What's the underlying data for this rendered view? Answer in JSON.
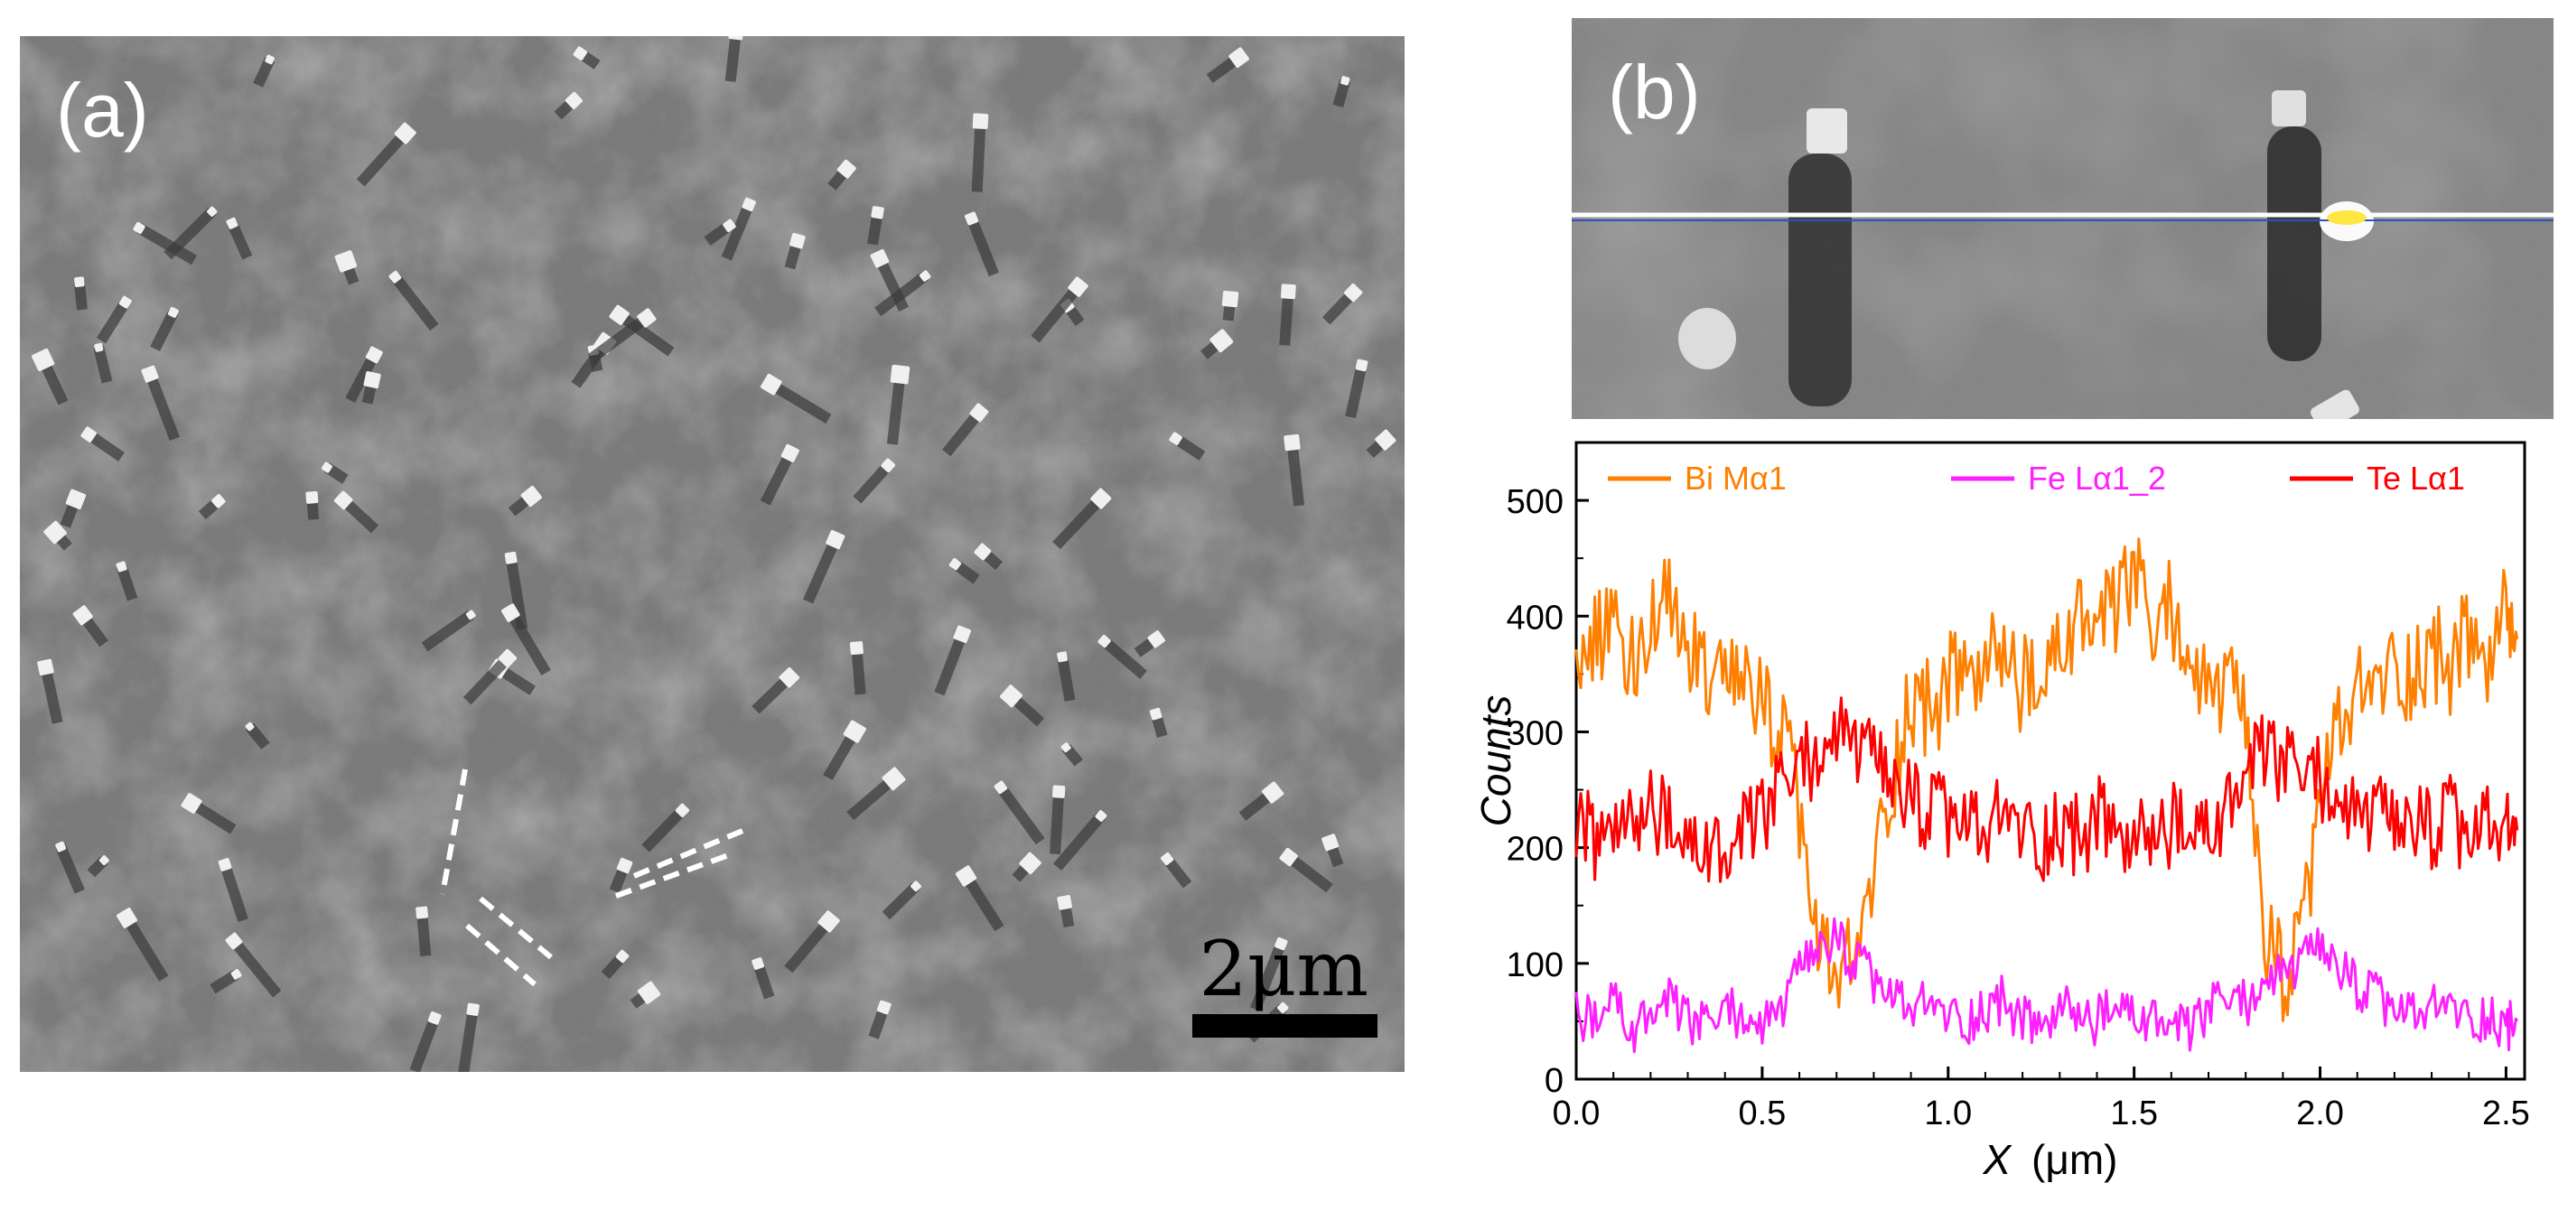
{
  "panels": {
    "a": {
      "label": "(a)",
      "scale_bar_text": "2μm"
    },
    "b": {
      "label": "(b)"
    }
  },
  "colors": {
    "bi": "#ff8000",
    "fe": "#ff20ff",
    "te": "#ff0000",
    "axis": "#000000",
    "sem_bg": "#6d6d6d"
  },
  "chart_data": {
    "type": "line",
    "title": "",
    "xlabel": "X (μm)",
    "xlabel_var": "X",
    "xlabel_unit": "(μm)",
    "ylabel": "Counts",
    "xlim": [
      0.0,
      2.55
    ],
    "ylim": [
      0,
      550
    ],
    "xticks": [
      "0.0",
      "0.5",
      "1.0",
      "1.5",
      "2.0",
      "2.5"
    ],
    "xtick_values": [
      0.0,
      0.5,
      1.0,
      1.5,
      2.0,
      2.5
    ],
    "yticks": [
      "0",
      "100",
      "200",
      "300",
      "400",
      "500"
    ],
    "ytick_values": [
      0,
      100,
      200,
      300,
      400,
      500
    ],
    "legend": [
      "Bi Mα1",
      "Fe Lα1_2",
      "Te Lα1"
    ],
    "legend_placement": "top",
    "series": [
      {
        "name": "Bi Mα1",
        "color": "#ff8000",
        "x": [
          0.0,
          0.05,
          0.1,
          0.15,
          0.2,
          0.25,
          0.3,
          0.35,
          0.4,
          0.45,
          0.5,
          0.55,
          0.6,
          0.65,
          0.7,
          0.75,
          0.8,
          0.85,
          0.9,
          0.95,
          1.0,
          1.05,
          1.1,
          1.15,
          1.2,
          1.25,
          1.3,
          1.35,
          1.4,
          1.45,
          1.5,
          1.55,
          1.6,
          1.65,
          1.7,
          1.75,
          1.8,
          1.85,
          1.9,
          1.95,
          2.0,
          2.05,
          2.1,
          2.15,
          2.2,
          2.25,
          2.3,
          2.35,
          2.4,
          2.45,
          2.5,
          2.53
        ],
        "values": [
          360,
          385,
          400,
          360,
          390,
          410,
          375,
          355,
          330,
          345,
          320,
          300,
          230,
          110,
          90,
          100,
          180,
          260,
          330,
          320,
          340,
          355,
          350,
          370,
          340,
          330,
          375,
          395,
          390,
          400,
          440,
          380,
          410,
          360,
          330,
          340,
          300,
          120,
          90,
          110,
          250,
          300,
          330,
          340,
          355,
          350,
          370,
          360,
          380,
          360,
          400,
          380
        ]
      },
      {
        "name": "Fe Lα1_2",
        "color": "#ff20ff",
        "x": [
          0.0,
          0.05,
          0.1,
          0.15,
          0.2,
          0.25,
          0.3,
          0.35,
          0.4,
          0.45,
          0.5,
          0.55,
          0.6,
          0.65,
          0.7,
          0.75,
          0.8,
          0.85,
          0.9,
          0.95,
          1.0,
          1.05,
          1.1,
          1.15,
          1.2,
          1.25,
          1.3,
          1.35,
          1.4,
          1.45,
          1.5,
          1.55,
          1.6,
          1.65,
          1.7,
          1.75,
          1.8,
          1.85,
          1.9,
          1.95,
          2.0,
          2.05,
          2.1,
          2.15,
          2.2,
          2.25,
          2.3,
          2.35,
          2.4,
          2.45,
          2.5,
          2.53
        ],
        "values": [
          60,
          45,
          70,
          40,
          55,
          65,
          50,
          45,
          60,
          55,
          45,
          60,
          90,
          110,
          120,
          100,
          85,
          70,
          60,
          65,
          55,
          50,
          60,
          70,
          50,
          45,
          60,
          55,
          50,
          60,
          55,
          50,
          45,
          40,
          60,
          70,
          65,
          85,
          90,
          100,
          110,
          95,
          80,
          70,
          60,
          55,
          60,
          65,
          50,
          55,
          45,
          50
        ]
      },
      {
        "name": "Te Lα1",
        "color": "#ff0000",
        "x": [
          0.0,
          0.05,
          0.1,
          0.15,
          0.2,
          0.25,
          0.3,
          0.35,
          0.4,
          0.45,
          0.5,
          0.55,
          0.6,
          0.65,
          0.7,
          0.75,
          0.8,
          0.85,
          0.9,
          0.95,
          1.0,
          1.05,
          1.1,
          1.15,
          1.2,
          1.25,
          1.3,
          1.35,
          1.4,
          1.45,
          1.5,
          1.55,
          1.6,
          1.65,
          1.7,
          1.75,
          1.8,
          1.85,
          1.9,
          1.95,
          2.0,
          2.05,
          2.1,
          2.15,
          2.2,
          2.25,
          2.3,
          2.35,
          2.4,
          2.45,
          2.5,
          2.53
        ],
        "values": [
          230,
          200,
          225,
          210,
          240,
          215,
          195,
          205,
          185,
          210,
          225,
          250,
          270,
          280,
          300,
          290,
          270,
          250,
          240,
          230,
          225,
          220,
          210,
          230,
          215,
          205,
          220,
          210,
          225,
          215,
          200,
          210,
          220,
          205,
          215,
          230,
          260,
          280,
          270,
          265,
          260,
          240,
          225,
          230,
          210,
          220,
          215,
          225,
          205,
          220,
          210,
          215
        ]
      }
    ]
  }
}
